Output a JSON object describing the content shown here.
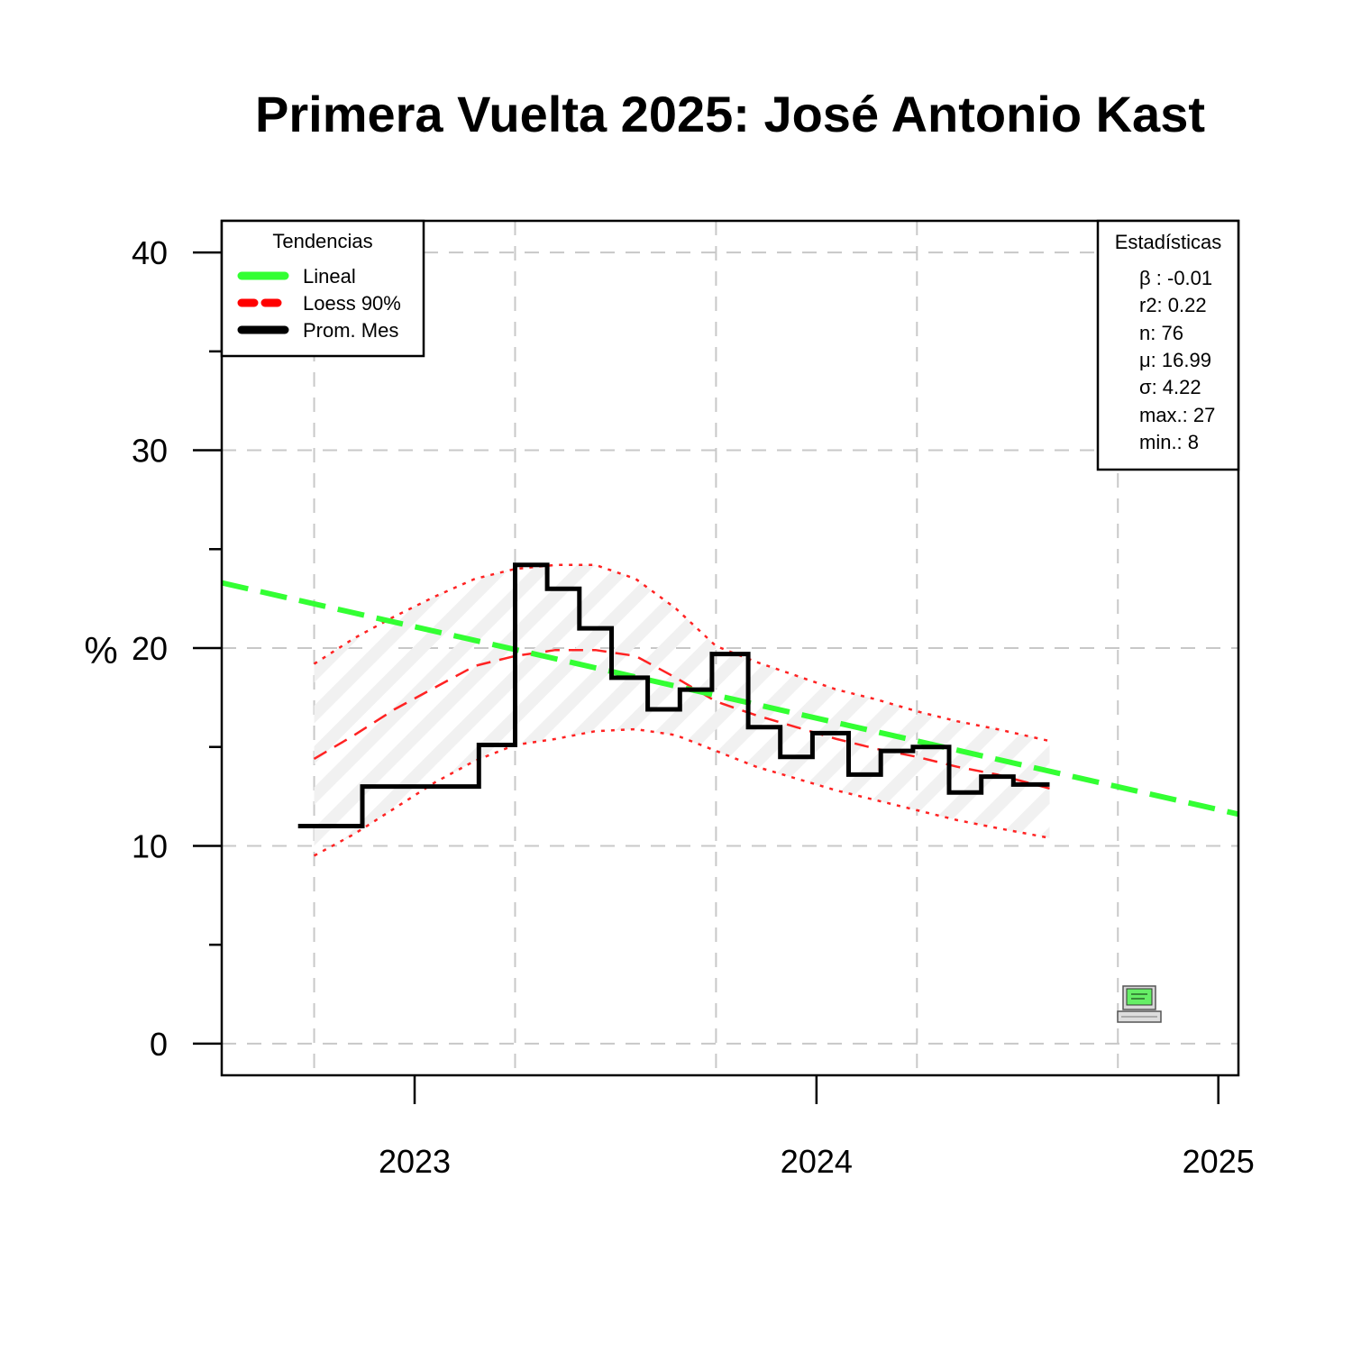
{
  "chart_data": {
    "type": "line",
    "title": "Primera Vuelta 2025: José Antonio Kast",
    "ylabel": "%",
    "xlabel": "",
    "xlim": [
      2022.52,
      2025.05
    ],
    "ylim": [
      -1.6,
      41.6
    ],
    "y_ticks": [
      0,
      10,
      20,
      30,
      40
    ],
    "y_minor_ticks": [
      5,
      15,
      25,
      35
    ],
    "x_ticks": [
      2023,
      2024,
      2025
    ],
    "x_tick_labels": [
      "2023",
      "2024",
      "2025"
    ],
    "grid": true,
    "legend": {
      "title": "Tendencias",
      "placement": "top-left",
      "entries": [
        {
          "label": "Lineal",
          "color": "#33ff33",
          "style": "solid"
        },
        {
          "label": "Loess 90%",
          "color": "#ff0000",
          "style": "dashed"
        },
        {
          "label": "Prom. Mes",
          "color": "#000000",
          "style": "solid"
        }
      ]
    },
    "stats_box": {
      "title": "Estadísticas",
      "placement": "top-right",
      "lines": [
        "β : -0.01",
        "r2: 0.22",
        "n: 76",
        "μ: 16.99",
        "σ: 4.22",
        "max.: 27",
        "min.: 8"
      ]
    },
    "series": [
      {
        "name": "Prom. Mes",
        "kind": "step",
        "color": "#000000",
        "x": [
          2022.71,
          2022.87,
          2022.87,
          2023.16,
          2023.16,
          2023.25,
          2023.25,
          2023.33,
          2023.33,
          2023.41,
          2023.41,
          2023.49,
          2023.49,
          2023.58,
          2023.58,
          2023.66,
          2023.66,
          2023.74,
          2023.74,
          2023.83,
          2023.83,
          2023.91,
          2023.91,
          2023.99,
          2023.99,
          2024.08,
          2024.08,
          2024.16,
          2024.16,
          2024.24,
          2024.24,
          2024.33,
          2024.33,
          2024.41,
          2024.41,
          2024.49,
          2024.49,
          2024.58,
          2024.58
        ],
        "y": [
          11,
          11,
          13,
          13,
          15.1,
          15.1,
          24.2,
          24.2,
          23,
          23,
          21,
          21,
          18.5,
          18.5,
          16.9,
          16.9,
          17.9,
          17.9,
          19.7,
          19.7,
          16,
          16,
          14.5,
          14.5,
          15.7,
          15.7,
          13.6,
          13.6,
          14.8,
          14.8,
          15,
          15,
          12.7,
          12.7,
          13.5,
          13.5,
          13.1,
          13.1,
          13.1
        ]
      },
      {
        "name": "Lineal",
        "kind": "trend",
        "color": "#33ff33",
        "x": [
          2022.52,
          2025.05
        ],
        "y": [
          23.3,
          11.6
        ]
      },
      {
        "name": "Loess 90%",
        "kind": "loess",
        "color": "#ff2222",
        "x": [
          2022.75,
          2022.85,
          2022.95,
          2023.05,
          2023.15,
          2023.25,
          2023.35,
          2023.45,
          2023.55,
          2023.65,
          2023.75,
          2023.85,
          2023.95,
          2024.05,
          2024.15,
          2024.25,
          2024.35,
          2024.45,
          2024.58
        ],
        "y": [
          14.4,
          15.6,
          16.9,
          18.0,
          19.1,
          19.6,
          19.9,
          19.9,
          19.6,
          18.5,
          17.3,
          16.6,
          16.0,
          15.4,
          14.9,
          14.5,
          14.0,
          13.6,
          12.9
        ]
      },
      {
        "name": "Loess upper",
        "kind": "band-upper",
        "color": "#ff2222",
        "x": [
          2022.75,
          2022.85,
          2022.95,
          2023.05,
          2023.15,
          2023.25,
          2023.35,
          2023.45,
          2023.55,
          2023.65,
          2023.75,
          2023.85,
          2023.95,
          2024.05,
          2024.15,
          2024.25,
          2024.35,
          2024.45,
          2024.58
        ],
        "y": [
          19.2,
          20.5,
          21.6,
          22.6,
          23.5,
          24.0,
          24.2,
          24.2,
          23.5,
          22.0,
          20.1,
          19.3,
          18.6,
          17.9,
          17.4,
          16.8,
          16.3,
          15.9,
          15.3
        ]
      },
      {
        "name": "Loess lower",
        "kind": "band-lower",
        "color": "#ff2222",
        "x": [
          2022.75,
          2022.85,
          2022.95,
          2023.05,
          2023.15,
          2023.25,
          2023.35,
          2023.45,
          2023.55,
          2023.65,
          2023.75,
          2023.85,
          2023.95,
          2024.05,
          2024.15,
          2024.25,
          2024.35,
          2024.45,
          2024.58
        ],
        "y": [
          9.5,
          10.6,
          11.9,
          13.2,
          14.3,
          15.1,
          15.4,
          15.8,
          15.9,
          15.6,
          14.8,
          14.0,
          13.4,
          12.8,
          12.3,
          11.8,
          11.3,
          10.9,
          10.4
        ]
      }
    ],
    "colors": {
      "grid": "#c8c8c8",
      "band_hatch": "#eeeeee",
      "axis": "#000000"
    }
  },
  "icons": {
    "watermark": "computer-icon"
  }
}
